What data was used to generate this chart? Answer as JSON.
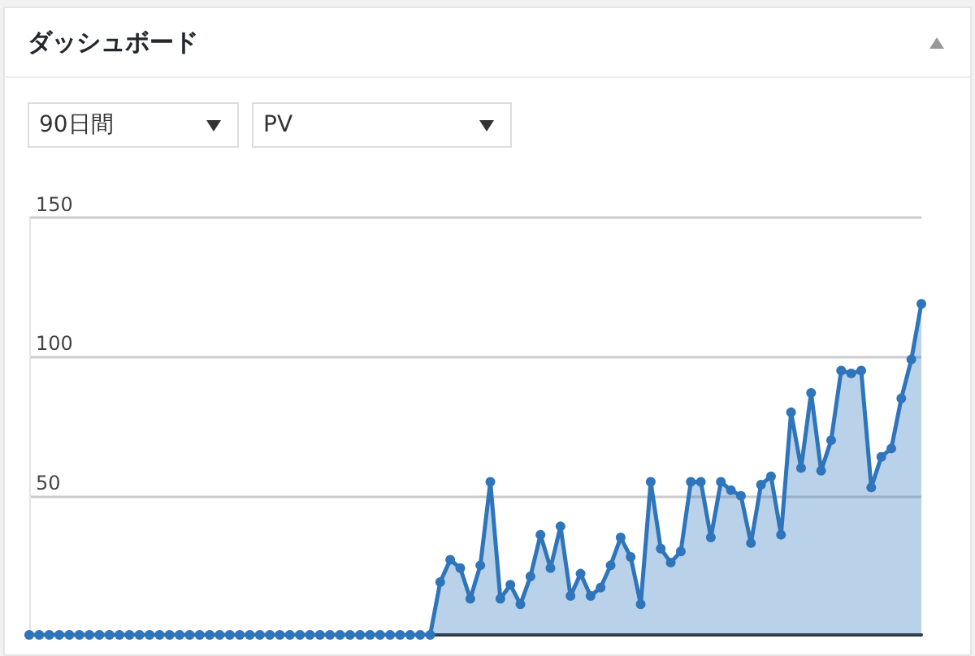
{
  "chart_data": {
    "type": "area",
    "title": "ダッシュボード",
    "annotations": [
      "90日間",
      "PV"
    ],
    "categories": [
      null,
      null,
      null,
      null,
      null,
      null,
      null,
      null,
      null,
      null,
      null,
      null,
      null,
      null,
      null,
      null,
      null,
      null,
      null,
      null,
      null,
      null,
      null,
      null,
      null,
      null,
      null,
      null,
      null,
      null,
      null,
      null,
      null,
      null,
      null,
      null,
      null,
      null,
      null,
      null,
      null,
      null,
      null,
      null,
      null,
      null,
      null,
      null,
      null,
      null,
      null,
      null,
      null,
      null,
      null,
      null,
      null,
      null,
      null,
      null,
      null,
      null,
      null,
      null,
      null,
      null,
      null,
      null,
      null,
      null,
      null,
      null,
      null,
      null,
      null,
      null,
      null,
      null,
      null,
      null,
      null,
      null,
      null,
      null,
      null,
      null,
      null,
      null,
      null,
      null
    ],
    "series": [
      {
        "color": "#2f75bb",
        "values": [
          0,
          0,
          0,
          0,
          0,
          0,
          0,
          0,
          0,
          0,
          0,
          0,
          0,
          0,
          0,
          0,
          0,
          0,
          0,
          0,
          0,
          0,
          0,
          0,
          0,
          0,
          0,
          0,
          0,
          0,
          0,
          0,
          0,
          0,
          0,
          0,
          0,
          0,
          0,
          0,
          0,
          19,
          27,
          24,
          13,
          25,
          55,
          13,
          18,
          11,
          21,
          36,
          24,
          39,
          14,
          22,
          14,
          17,
          25,
          35,
          28,
          11,
          55,
          31,
          26,
          30,
          55,
          55,
          35,
          55,
          52,
          50,
          33,
          54,
          57,
          36,
          80,
          60,
          87,
          59,
          70,
          95,
          94,
          95,
          53,
          64,
          67,
          85,
          99,
          119
        ]
      }
    ],
    "ylim": [
      0,
      150
    ],
    "yticks": [
      {
        "value": 0,
        "label": null
      },
      50,
      100,
      150
    ],
    "grid": "y",
    "marker": "circle",
    "tick_labels": "y"
  }
}
